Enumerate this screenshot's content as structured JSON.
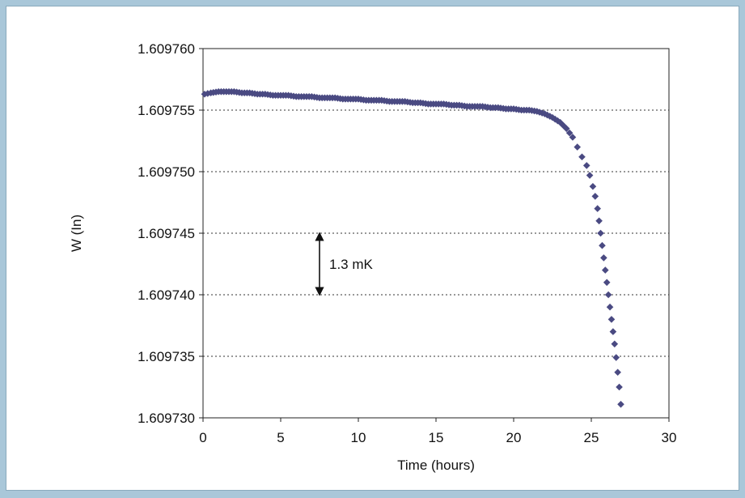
{
  "chart_data": {
    "type": "scatter",
    "title": "",
    "xlabel": "Time (hours)",
    "ylabel": "W (In)",
    "xlim": [
      0,
      30
    ],
    "ylim": [
      1.60973,
      1.60976
    ],
    "xticks": [
      "0",
      "5",
      "10",
      "15",
      "20",
      "25",
      "30"
    ],
    "yticks": [
      "1.609730",
      "1.609735",
      "1.609740",
      "1.609745",
      "1.609750",
      "1.609755",
      "1.609760"
    ],
    "grid": "horizontal dashed",
    "marker_color": "#4a4a82",
    "series": [
      {
        "x": [
          0.1,
          0.5,
          1.0,
          1.5,
          2.0,
          2.5,
          3.0,
          3.5,
          4.0,
          4.5,
          5.0,
          5.5,
          6.0,
          6.5,
          7.0,
          7.5,
          8.0,
          8.5,
          9.0,
          9.5,
          10.0,
          10.5,
          11.0,
          11.5,
          12.0,
          12.5,
          13.0,
          13.5,
          14.0,
          14.5,
          15.0,
          15.5,
          16.0,
          16.5,
          17.0,
          17.5,
          18.0,
          18.5,
          19.0,
          19.5,
          20.0,
          20.5,
          21.0,
          21.5,
          22.0,
          22.5,
          23.0,
          23.4,
          23.8,
          24.1,
          24.4,
          24.7,
          24.9,
          25.1,
          25.25,
          25.4,
          25.5,
          25.6,
          25.7,
          25.8,
          25.9,
          26.0,
          26.1,
          26.2,
          26.3,
          26.4,
          26.5,
          26.6,
          26.7,
          26.8,
          26.9
        ],
        "y": [
          1.6097563,
          1.6097564,
          1.6097565,
          1.6097565,
          1.6097565,
          1.6097564,
          1.6097564,
          1.6097563,
          1.6097563,
          1.6097562,
          1.6097562,
          1.6097562,
          1.6097561,
          1.6097561,
          1.6097561,
          1.609756,
          1.609756,
          1.609756,
          1.6097559,
          1.6097559,
          1.6097559,
          1.6097558,
          1.6097558,
          1.6097558,
          1.6097557,
          1.6097557,
          1.6097557,
          1.6097556,
          1.6097556,
          1.6097555,
          1.6097555,
          1.6097555,
          1.6097554,
          1.6097554,
          1.6097553,
          1.6097553,
          1.6097553,
          1.6097552,
          1.6097552,
          1.6097551,
          1.6097551,
          1.609755,
          1.609755,
          1.6097549,
          1.6097547,
          1.6097544,
          1.609754,
          1.6097535,
          1.6097528,
          1.609752,
          1.6097512,
          1.6097505,
          1.6097497,
          1.6097488,
          1.609748,
          1.609747,
          1.609746,
          1.609745,
          1.609744,
          1.609743,
          1.609742,
          1.609741,
          1.60974,
          1.609739,
          1.609738,
          1.609737,
          1.609736,
          1.6097349,
          1.6097337,
          1.6097325,
          1.6097311
        ]
      }
    ],
    "annotation": {
      "label": "1.3 mK",
      "x": 7.5,
      "y_from": 1.60974,
      "y_to": 1.609745
    }
  }
}
